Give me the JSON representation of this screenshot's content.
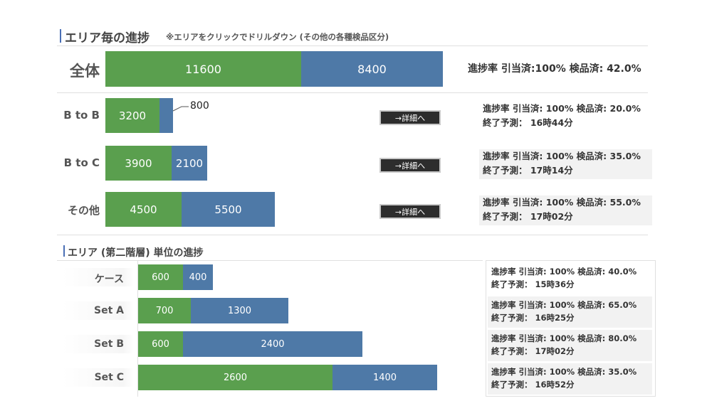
{
  "section1": {
    "title": "エリア毎の進捗",
    "note": "※エリアをクリックでドリルダウン (その他の各種検品区分)"
  },
  "total": {
    "label": "全体",
    "values": [
      11600,
      8400
    ],
    "info": "進捗率 引当済:100% 検品済: 42.0%"
  },
  "areas": [
    {
      "label": "B to B",
      "values": [
        3200,
        800
      ],
      "button": "→詳細へ",
      "info_line1": "進捗率 引当済: 100%  検品済: 20.0%",
      "info_line2": "終了予測： 16時44分"
    },
    {
      "label": "B to C",
      "values": [
        3900,
        2100
      ],
      "button": "→詳細へ",
      "info_line1": "進捗率 引当済: 100%  検品済: 35.0%",
      "info_line2": "終了予測： 17時14分"
    },
    {
      "label": "その他",
      "values": [
        4500,
        5500
      ],
      "button": "→詳細へ",
      "info_line1": "進捗率 引当済: 100%  検品済: 55.0%",
      "info_line2": "終了予測： 17時02分"
    }
  ],
  "section2": {
    "title": "エリア (第二階層) 単位の進捗"
  },
  "sub_areas": [
    {
      "label": "ケース",
      "values": [
        600,
        400
      ],
      "info_line1": "進捗率 引当済: 100%  検品済: 40.0%",
      "info_line2": "終了予測： 15時36分"
    },
    {
      "label": "Set A",
      "values": [
        700,
        1300
      ],
      "info_line1": "進捗率 引当済: 100%  検品済: 65.0%",
      "info_line2": "終了予測： 16時25分"
    },
    {
      "label": "Set B",
      "values": [
        600,
        2400
      ],
      "info_line1": "進捗率 引当済: 100%  検品済: 80.0%",
      "info_line2": "終了予測： 17時02分"
    },
    {
      "label": "Set C",
      "values": [
        2600,
        1400
      ],
      "info_line1": "進捗率 引当済: 100%  検品済: 35.0%",
      "info_line2": "終了予測： 16時52分"
    }
  ],
  "colors": {
    "inspected": "#5a9f4e",
    "remaining": "#4e79a7",
    "accent": "#4a6fb5"
  }
}
